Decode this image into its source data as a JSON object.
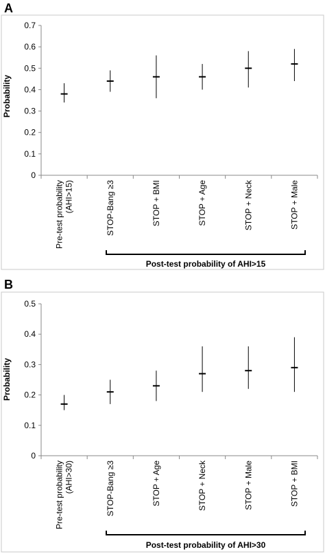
{
  "chart_data": [
    {
      "type": "scatter",
      "panel": "A",
      "ylabel": "Probability",
      "ylim": [
        0,
        0.7
      ],
      "yticks": [
        "0",
        "0.1",
        "0.2",
        "0.3",
        "0.4",
        "0.5",
        "0.6",
        "0.7"
      ],
      "categories": [
        "Pre-test probability\n(AHI>15)",
        "STOP-Bang ≥3",
        "STOP + BMI",
        "STOP + Age",
        "STOP + Neck",
        "STOP + Male"
      ],
      "values": [
        0.38,
        0.44,
        0.46,
        0.46,
        0.5,
        0.52
      ],
      "lower": [
        0.34,
        0.39,
        0.36,
        0.4,
        0.41,
        0.44
      ],
      "upper": [
        0.43,
        0.49,
        0.56,
        0.52,
        0.58,
        0.59
      ],
      "bracket_label": "Post-test probability of AHI>15",
      "grid": false
    },
    {
      "type": "scatter",
      "panel": "B",
      "ylabel": "Probability",
      "ylim": [
        0,
        0.5
      ],
      "yticks": [
        "0",
        "0.1",
        "0.2",
        "0.3",
        "0.4",
        "0.5"
      ],
      "categories": [
        "Pre-test probability\n(AHI>30)",
        "STOP-Bang ≥3",
        "STOP + Age",
        "STOP + Neck",
        "STOP + Male",
        "STOP + BMI"
      ],
      "values": [
        0.17,
        0.21,
        0.23,
        0.27,
        0.28,
        0.29
      ],
      "lower": [
        0.15,
        0.17,
        0.18,
        0.21,
        0.22,
        0.21
      ],
      "upper": [
        0.2,
        0.25,
        0.28,
        0.36,
        0.36,
        0.39
      ],
      "bracket_label": "Post-test probability of AHI>30",
      "grid": false
    }
  ]
}
